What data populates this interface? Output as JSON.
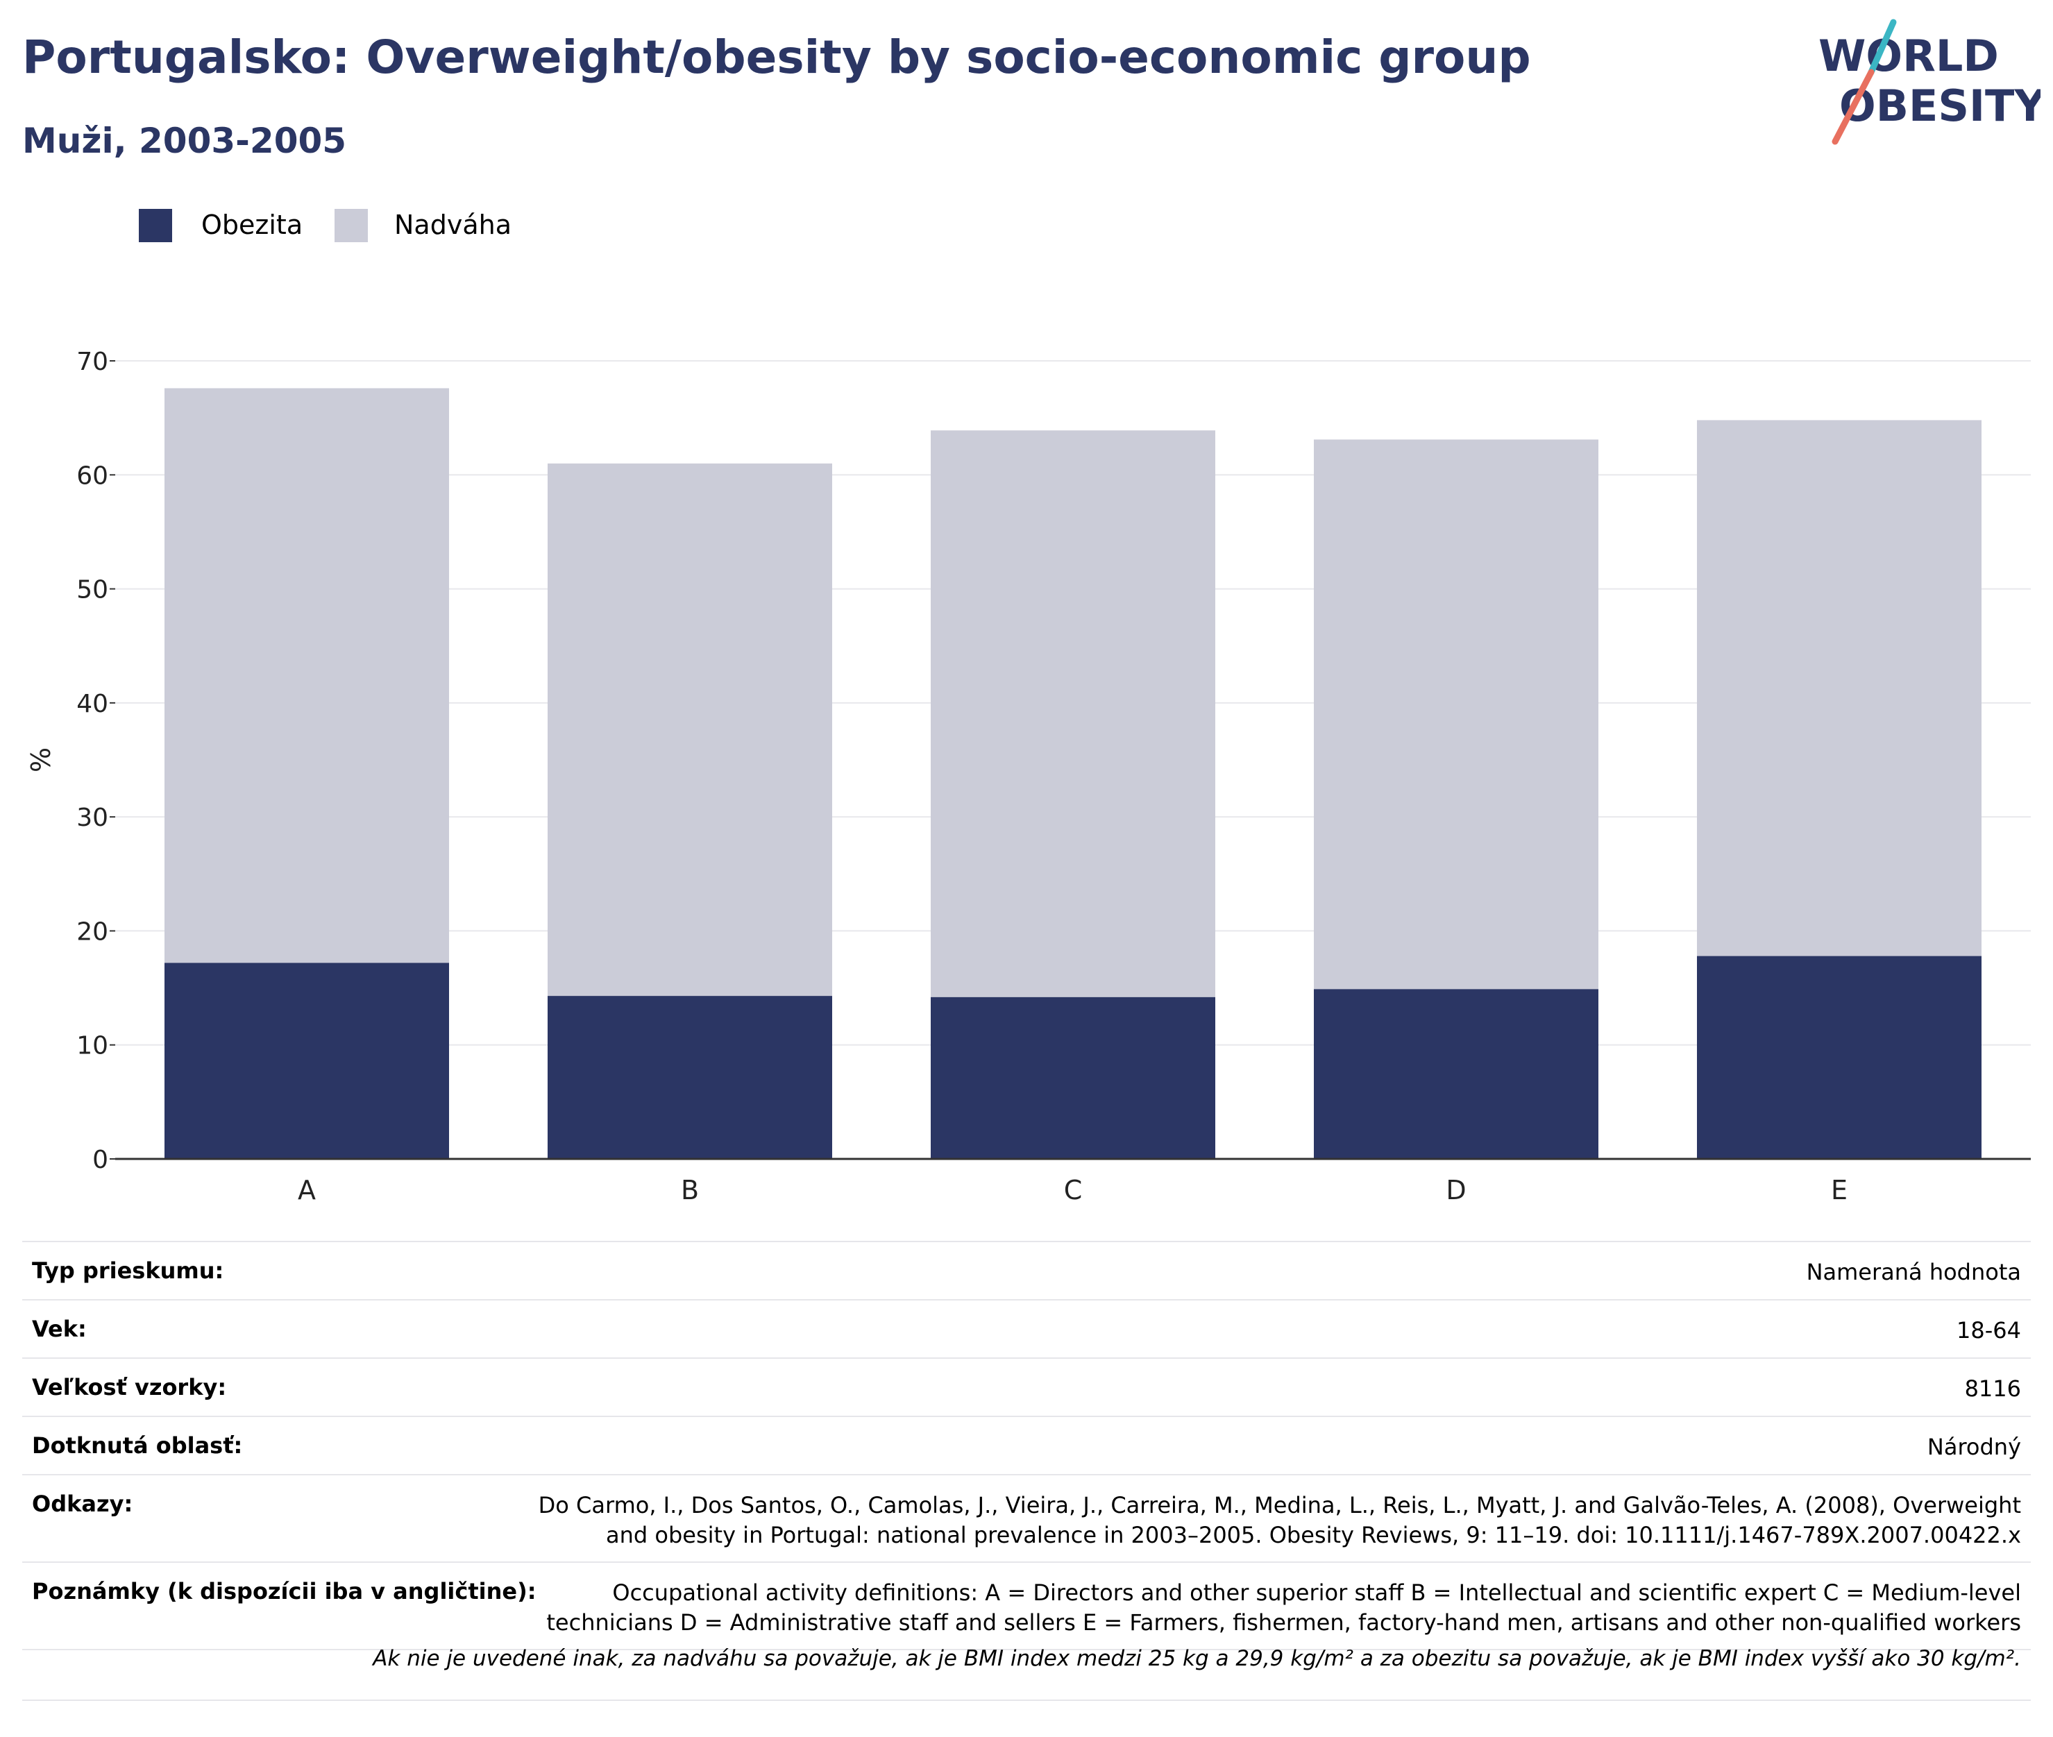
{
  "header": {
    "title": "Portugalsko: Overweight/obesity by socio-economic group",
    "subtitle": "Muži, 2003-2005"
  },
  "logo": {
    "line1": "WORLD",
    "line2": "OBESITY",
    "colors": {
      "text": "#2b3664",
      "slash_teal": "#3bb6c4",
      "slash_coral": "#e8705f"
    }
  },
  "colors": {
    "obesity": "#2b3664",
    "overweight": "#cbccd8",
    "gridline": "#e8e8ec",
    "axis": "#333333"
  },
  "chart_data": {
    "type": "bar",
    "stacked": true,
    "categories": [
      "A",
      "B",
      "C",
      "D",
      "E"
    ],
    "series": [
      {
        "name": "Obezita",
        "values": [
          17.2,
          14.3,
          14.2,
          14.9,
          17.8
        ]
      },
      {
        "name": "Nadváha",
        "values": [
          50.4,
          46.7,
          49.7,
          48.2,
          47.0
        ]
      }
    ],
    "xlabel": "",
    "ylabel": "%",
    "ylim": [
      0,
      70
    ],
    "yticks": [
      0,
      10,
      20,
      30,
      40,
      50,
      60,
      70
    ],
    "grid": true,
    "legend_position": "top-left"
  },
  "legend": [
    {
      "label": "Obezita",
      "color": "#2b3664"
    },
    {
      "label": "Nadváha",
      "color": "#cbccd8"
    }
  ],
  "info": [
    {
      "key": "Typ prieskumu:",
      "value": "Nameraná hodnota"
    },
    {
      "key": "Vek:",
      "value": "18-64"
    },
    {
      "key": "Veľkosť vzorky:",
      "value": "8116"
    },
    {
      "key": "Dotknutá oblasť:",
      "value": "Národný"
    },
    {
      "key": "Odkazy:",
      "value_lines": [
        "Do Carmo, I., Dos Santos, O., Camolas, J., Vieira, J., Carreira, M., Medina, L., Reis, L., Myatt, J. and Galvão-Teles, A. (2008), Overweight",
        "and obesity in Portugal: national prevalence in 2003–2005. Obesity Reviews, 9: 11–19. doi: 10.1111/j.1467-789X.2007.00422.x"
      ]
    },
    {
      "key": "Poznámky (k dispozícii iba v angličtine):",
      "value_lines": [
        "Occupational activity definitions: A = Directors and other superior staff B = Intellectual and scientific expert C = Medium-level",
        "technicians D = Administrative staff and sellers E = Farmers, fishermen, factory-hand men, artisans and other non-qualified workers"
      ]
    }
  ],
  "footnote": "Ak nie je uvedené inak, za nadváhu sa považuje, ak je BMI index medzi 25 kg a 29,9 kg/m² a za obezitu sa považuje, ak je BMI index vyšší ako 30 kg/m²."
}
